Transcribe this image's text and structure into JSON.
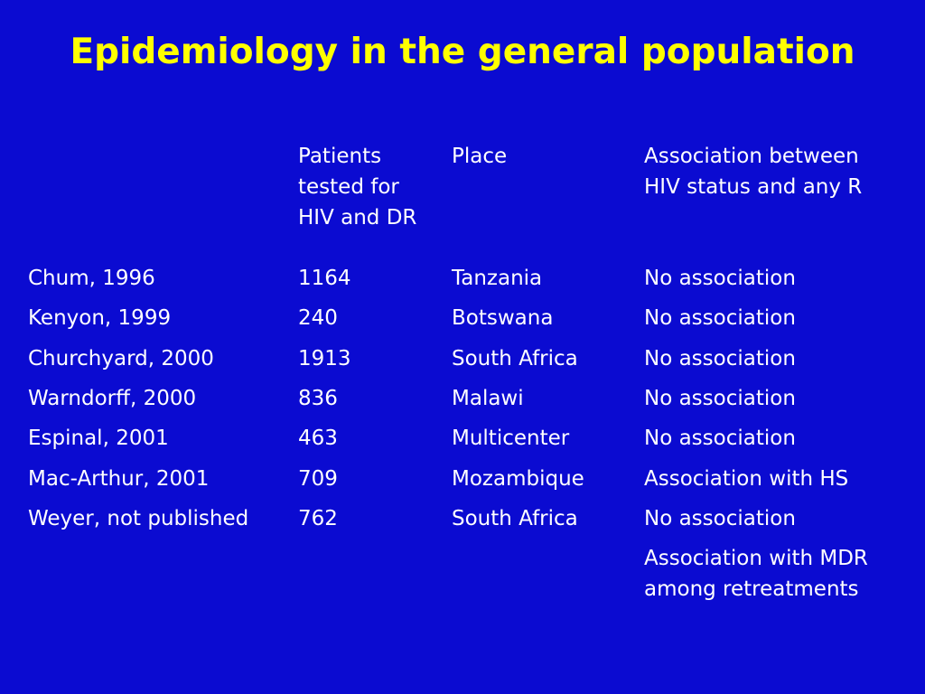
{
  "title": "Epidemiology in the general population",
  "table": {
    "headers": [
      "",
      "Patients\ntested for\nHIV and DR",
      "Place",
      "Association between\nHIV status and any R"
    ],
    "rows": [
      {
        "study": "Chum, 1996",
        "patients": "1164",
        "place": "Tanzania",
        "association": "No association"
      },
      {
        "study": "Kenyon, 1999",
        "patients": "240",
        "place": "Botswana",
        "association": "No association"
      },
      {
        "study": "Churchyard, 2000",
        "patients": "1913",
        "place": "South Africa",
        "association": "No association"
      },
      {
        "study": "Warndorff, 2000",
        "patients": "836",
        "place": "Malawi",
        "association": "No association"
      },
      {
        "study": "Espinal, 2001",
        "patients": "463",
        "place": "Multicenter",
        "association": "No association"
      },
      {
        "study": "Mac-Arthur, 2001",
        "patients": "709",
        "place": "Mozambique",
        "association": "Association with HS"
      },
      {
        "study": "Weyer, not published",
        "patients": "762",
        "place": "South Africa",
        "association": "No association"
      },
      {
        "study": "",
        "patients": "",
        "place": "",
        "association": "Association with MDR\namong retreatments"
      }
    ]
  },
  "colors": {
    "background": "#0b0bd1",
    "title": "#ffff00",
    "text": "#ffffff"
  }
}
